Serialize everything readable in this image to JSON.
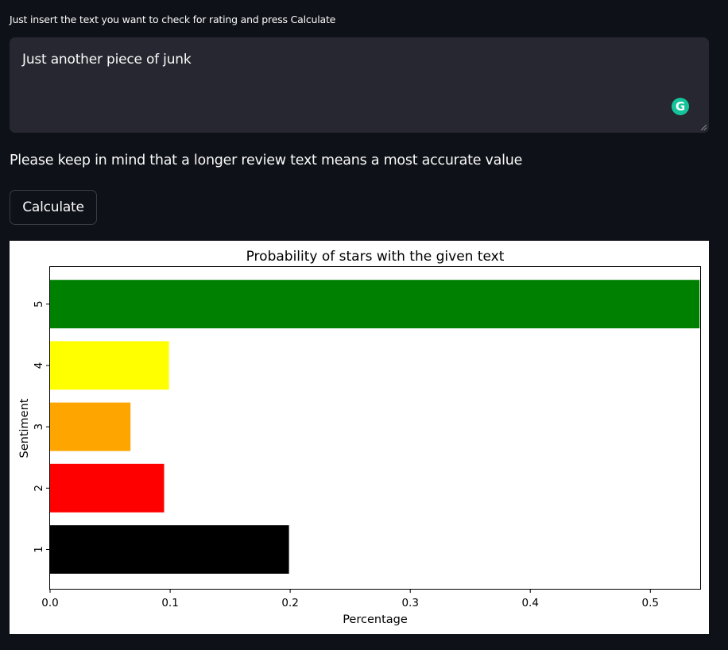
{
  "input": {
    "label": "Just insert the text you want to check for rating and press Calculate",
    "value": "Just another piece of junk",
    "grammarly_icon": "G"
  },
  "notice": "Please keep in mind that a longer review text means a most accurate value",
  "calculate_button": {
    "label": "Calculate"
  },
  "chart_data": {
    "type": "bar",
    "orientation": "horizontal",
    "title": "Probability of stars with the given text",
    "xlabel": "Percentage",
    "ylabel": "Sentiment",
    "xlim": [
      0,
      0.5415
    ],
    "xticks": [
      "0.0",
      "0.1",
      "0.2",
      "0.3",
      "0.4",
      "0.5"
    ],
    "categories": [
      "1",
      "2",
      "3",
      "4",
      "5"
    ],
    "values": [
      0.199,
      0.095,
      0.067,
      0.099,
      0.541
    ],
    "colors": [
      "#000000",
      "#ff0000",
      "#ffa500",
      "#ffff00",
      "#008000"
    ],
    "grid": false
  }
}
